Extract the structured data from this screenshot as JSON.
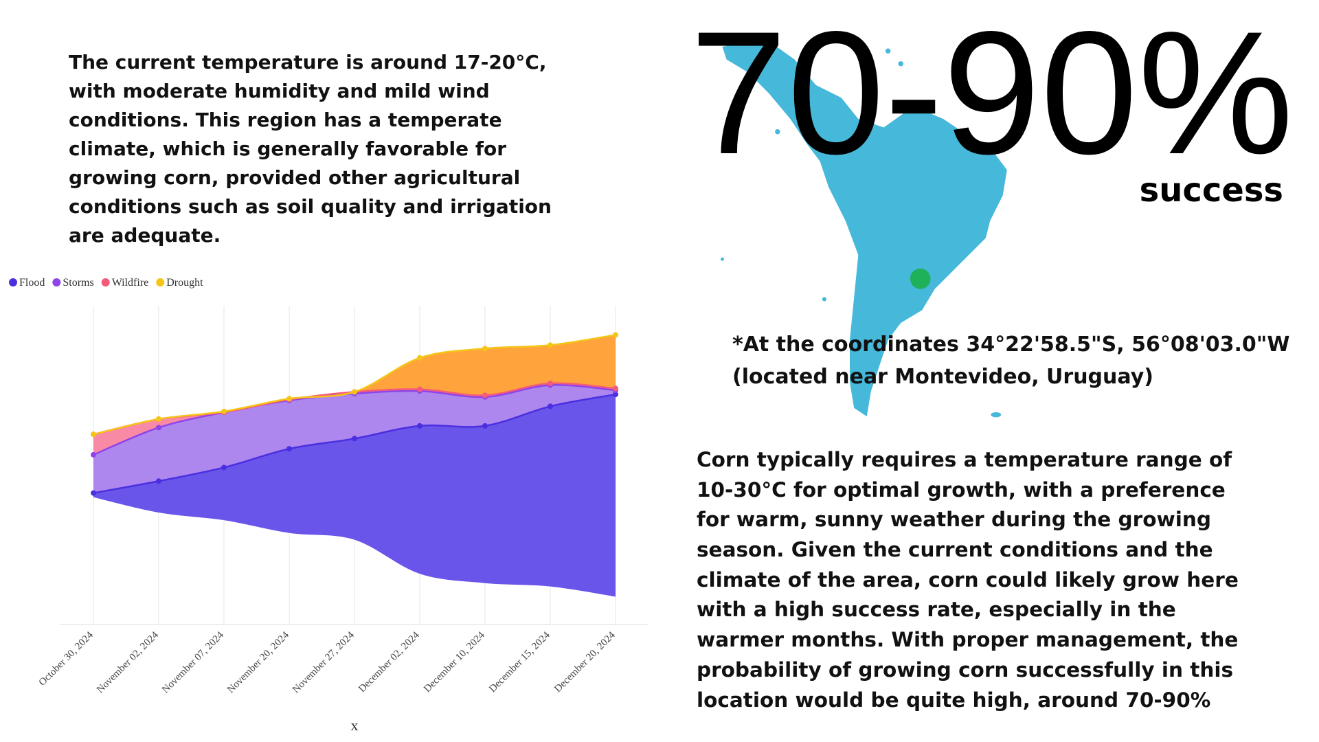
{
  "intro": {
    "lines": [
      "The current temperature is around 17-20°C,",
      "with moderate humidity and mild wind",
      "conditions. This region has a temperate",
      "climate, which is generally favorable for",
      "growing corn, provided other agricultural",
      "conditions such as soil quality and irrigation",
      "are adequate."
    ]
  },
  "headline": {
    "value": "70-90%",
    "caption": "success"
  },
  "location": {
    "lines": [
      "*At the coordinates 34°22'58.5\"S, 56°08'03.0\"W",
      "(located near Montevideo, Uruguay)"
    ]
  },
  "assessment": {
    "lines": [
      "Corn typically requires a temperature range of",
      "10-30°C for optimal growth, with a preference",
      "for warm, sunny weather during the growing",
      "season. Given the current conditions and the",
      "climate of the area, corn could likely grow here",
      "with a high success rate, especially in the",
      "warmer months. With proper management, the",
      "probability of growing corn successfully in this",
      "location would be quite high, around 70-90%"
    ]
  },
  "chart_data": {
    "type": "streamgraph",
    "offset": "silhouette",
    "xlabel": "x",
    "grid": true,
    "x": [
      "October 30, 2024",
      "November 02, 2024",
      "November 07, 2024",
      "November 20, 2024",
      "November 27, 2024",
      "December 02, 2024",
      "December 10, 2024",
      "December 15, 2024",
      "December 20, 2024"
    ],
    "series": [
      {
        "name": "Flood",
        "color": "#4a2fe0",
        "fill": "#6a55ea",
        "values": [
          5,
          37,
          62,
          99,
          119,
          174,
          185,
          212,
          238
        ]
      },
      {
        "name": "Storms",
        "color": "#8e44e8",
        "fill": "#ad86ee",
        "values": [
          45,
          63,
          65,
          57,
          53,
          41,
          34,
          25,
          5
        ]
      },
      {
        "name": "Wildfire",
        "color": "#f45a7a",
        "fill": "#f98aa5",
        "values": [
          24,
          10,
          0,
          1,
          2,
          2,
          2,
          2,
          2
        ]
      },
      {
        "name": "Drought",
        "color": "#f5c518",
        "fill": "#ffa43c",
        "values": [
          0,
          0,
          1,
          1,
          0,
          37,
          55,
          45,
          63
        ]
      }
    ]
  }
}
